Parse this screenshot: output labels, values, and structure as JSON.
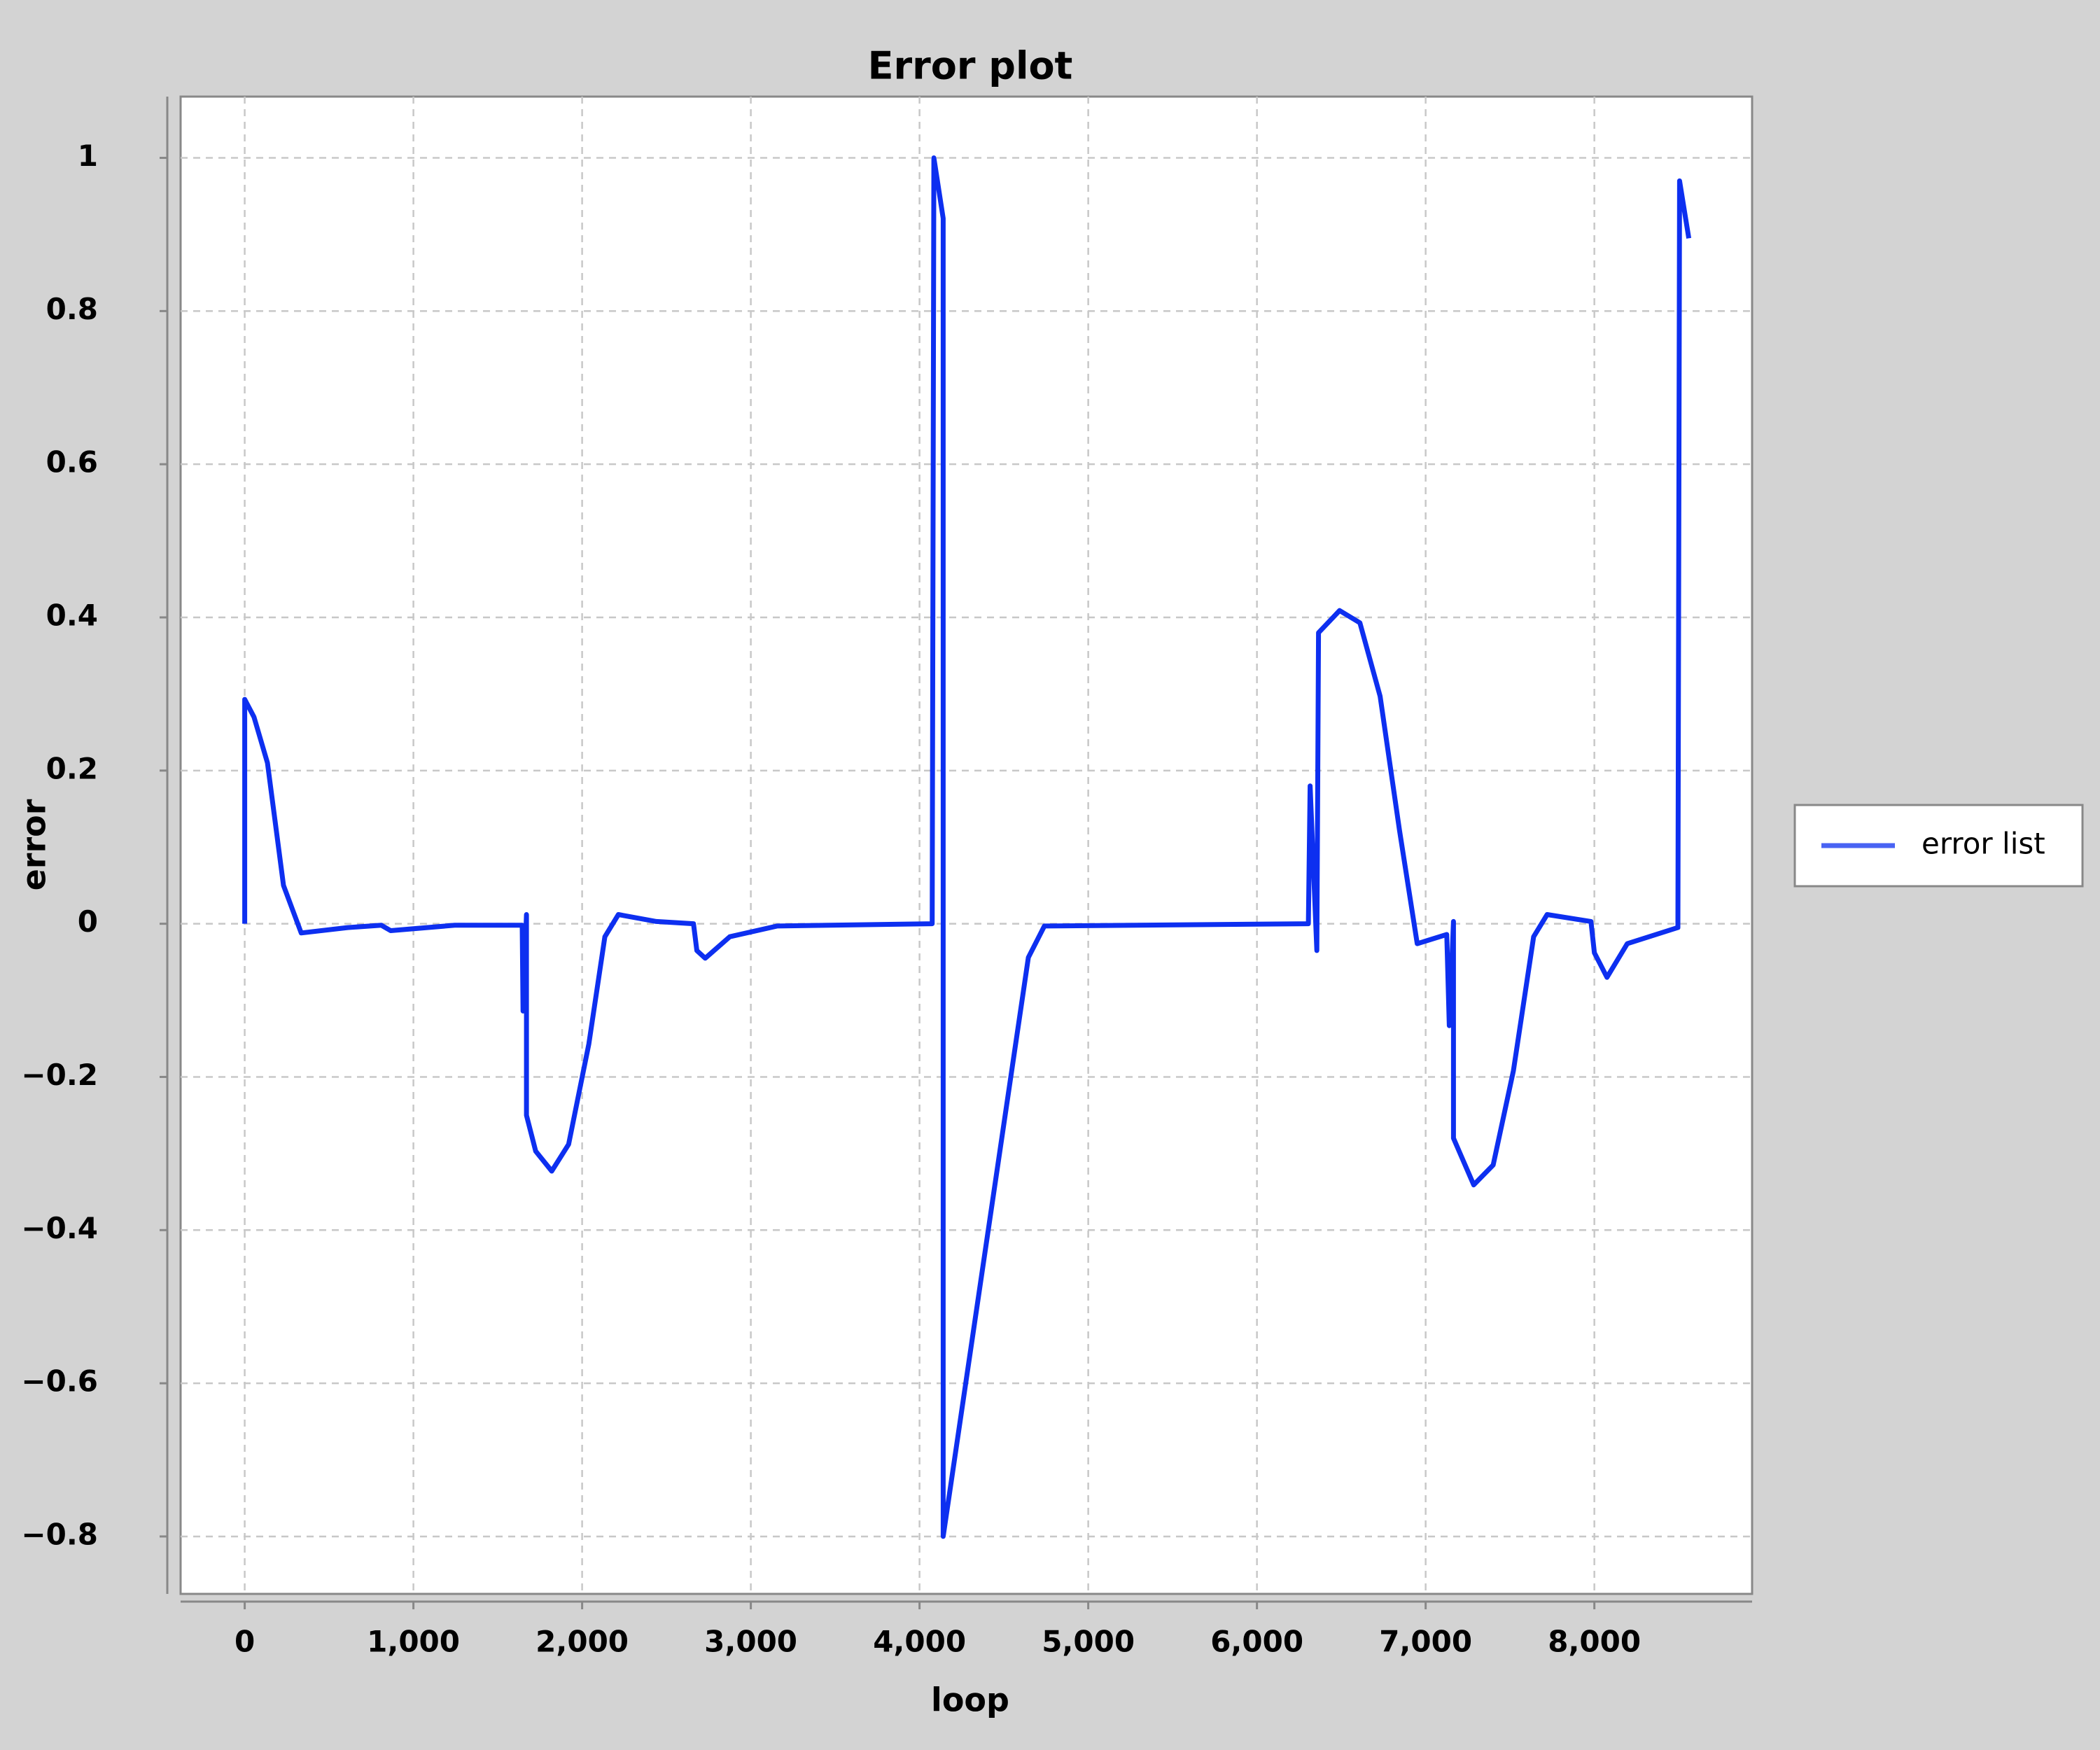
{
  "chart_data": {
    "type": "line",
    "title": "Error plot",
    "x_label": "loop",
    "y_label": "error",
    "x": [
      0,
      0,
      55,
      135,
      230,
      335,
      610,
      810,
      865,
      1245,
      1645,
      1650,
      1670,
      1670,
      1725,
      1820,
      1920,
      2040,
      2135,
      2215,
      2440,
      2660,
      2680,
      2730,
      2875,
      3155,
      4075,
      4085,
      4140,
      4140,
      4645,
      4740,
      6305,
      6315,
      6355,
      6365,
      6490,
      6610,
      6730,
      6845,
      6950,
      7125,
      7140,
      7165,
      7165,
      7285,
      7400,
      7520,
      7640,
      7720,
      7980,
      8000,
      8075,
      8195,
      8495,
      8505,
      8560
    ],
    "series": [
      {
        "name": "error list",
        "color": "#0d2ff0",
        "values": [
          0,
          0.293,
          0.27,
          0.21,
          0.05,
          -0.012,
          -0.005,
          -0.002,
          -0.009,
          -0.002,
          -0.002,
          -0.114,
          0.012,
          -0.25,
          -0.297,
          -0.323,
          -0.288,
          -0.157,
          -0.017,
          0.012,
          0.003,
          0,
          -0.035,
          -0.045,
          -0.017,
          -0.003,
          0,
          1.0,
          0.921,
          -0.8,
          -0.044,
          -0.003,
          0,
          0.18,
          -0.035,
          0.38,
          0.409,
          0.393,
          0.297,
          0.122,
          -0.026,
          -0.014,
          -0.133,
          0.003,
          -0.28,
          -0.341,
          -0.315,
          -0.192,
          -0.017,
          0.012,
          0.003,
          -0.038,
          -0.07,
          -0.026,
          -0.005,
          0.97,
          0.895
        ]
      }
    ],
    "xlim": [
      -380,
      8935
    ],
    "ylim": [
      -0.875,
      1.08
    ],
    "xticks": [
      0,
      {
        "value": 1000,
        "label": "1,000"
      },
      {
        "value": 2000,
        "label": "2,000"
      },
      {
        "value": 3000,
        "label": "3,000"
      },
      {
        "value": 4000,
        "label": "4,000"
      },
      {
        "value": 5000,
        "label": "5,000"
      },
      {
        "value": 6000,
        "label": "6,000"
      },
      {
        "value": 7000,
        "label": "7,000"
      },
      {
        "value": 8000,
        "label": "8,000"
      }
    ],
    "yticks": [
      {
        "value": -0.8,
        "label": "−0.8"
      },
      {
        "value": -0.6,
        "label": "−0.6"
      },
      {
        "value": -0.4,
        "label": "−0.4"
      },
      {
        "value": -0.2,
        "label": "−0.2"
      },
      0,
      0.2,
      0.4,
      0.6,
      0.8,
      1
    ],
    "grid": true,
    "legend": "right"
  }
}
